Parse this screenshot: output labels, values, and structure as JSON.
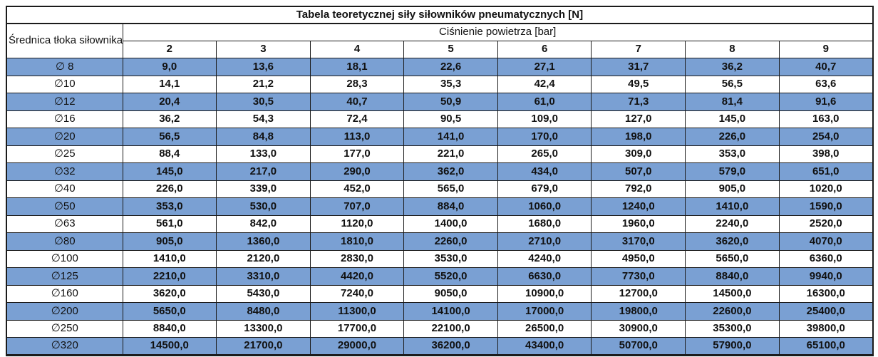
{
  "table": {
    "title": "Tabela teoretycznej siły siłowników pneumatycznych [N]",
    "row_header": "Średnica tłoka siłownika",
    "col_group_header": "Ciśnienie powietrza [bar]",
    "pressures": [
      "2",
      "3",
      "4",
      "5",
      "6",
      "7",
      "8",
      "9"
    ],
    "rows": [
      {
        "label": "∅ 8",
        "values": [
          "9,0",
          "13,6",
          "18,1",
          "22,6",
          "27,1",
          "31,7",
          "36,2",
          "40,7"
        ]
      },
      {
        "label": "∅10",
        "values": [
          "14,1",
          "21,2",
          "28,3",
          "35,3",
          "42,4",
          "49,5",
          "56,5",
          "63,6"
        ]
      },
      {
        "label": "∅12",
        "values": [
          "20,4",
          "30,5",
          "40,7",
          "50,9",
          "61,0",
          "71,3",
          "81,4",
          "91,6"
        ]
      },
      {
        "label": "∅16",
        "values": [
          "36,2",
          "54,3",
          "72,4",
          "90,5",
          "109,0",
          "127,0",
          "145,0",
          "163,0"
        ]
      },
      {
        "label": "∅20",
        "values": [
          "56,5",
          "84,8",
          "113,0",
          "141,0",
          "170,0",
          "198,0",
          "226,0",
          "254,0"
        ]
      },
      {
        "label": "∅25",
        "values": [
          "88,4",
          "133,0",
          "177,0",
          "221,0",
          "265,0",
          "309,0",
          "353,0",
          "398,0"
        ]
      },
      {
        "label": "∅32",
        "values": [
          "145,0",
          "217,0",
          "290,0",
          "362,0",
          "434,0",
          "507,0",
          "579,0",
          "651,0"
        ]
      },
      {
        "label": "∅40",
        "values": [
          "226,0",
          "339,0",
          "452,0",
          "565,0",
          "679,0",
          "792,0",
          "905,0",
          "1020,0"
        ]
      },
      {
        "label": "∅50",
        "values": [
          "353,0",
          "530,0",
          "707,0",
          "884,0",
          "1060,0",
          "1240,0",
          "1410,0",
          "1590,0"
        ]
      },
      {
        "label": "∅63",
        "values": [
          "561,0",
          "842,0",
          "1120,0",
          "1400,0",
          "1680,0",
          "1960,0",
          "2240,0",
          "2520,0"
        ]
      },
      {
        "label": "∅80",
        "values": [
          "905,0",
          "1360,0",
          "1810,0",
          "2260,0",
          "2710,0",
          "3170,0",
          "3620,0",
          "4070,0"
        ]
      },
      {
        "label": "∅100",
        "values": [
          "1410,0",
          "2120,0",
          "2830,0",
          "3530,0",
          "4240,0",
          "4950,0",
          "5650,0",
          "6360,0"
        ]
      },
      {
        "label": "∅125",
        "values": [
          "2210,0",
          "3310,0",
          "4420,0",
          "5520,0",
          "6630,0",
          "7730,0",
          "8840,0",
          "9940,0"
        ]
      },
      {
        "label": "∅160",
        "values": [
          "3620,0",
          "5430,0",
          "7240,0",
          "9050,0",
          "10900,0",
          "12700,0",
          "14500,0",
          "16300,0"
        ]
      },
      {
        "label": "∅200",
        "values": [
          "5650,0",
          "8480,0",
          "11300,0",
          "14100,0",
          "17000,0",
          "19800,0",
          "22600,0",
          "25400,0"
        ]
      },
      {
        "label": "∅250",
        "values": [
          "8840,0",
          "13300,0",
          "17700,0",
          "22100,0",
          "26500,0",
          "30900,0",
          "35300,0",
          "39800,0"
        ]
      },
      {
        "label": "∅320",
        "values": [
          "14500,0",
          "21700,0",
          "29000,0",
          "36200,0",
          "43400,0",
          "50700,0",
          "57900,0",
          "65100,0"
        ]
      }
    ]
  },
  "colors": {
    "row_highlight": "#7AA0D3",
    "border": "#1b1b1b",
    "text": "#111111"
  }
}
